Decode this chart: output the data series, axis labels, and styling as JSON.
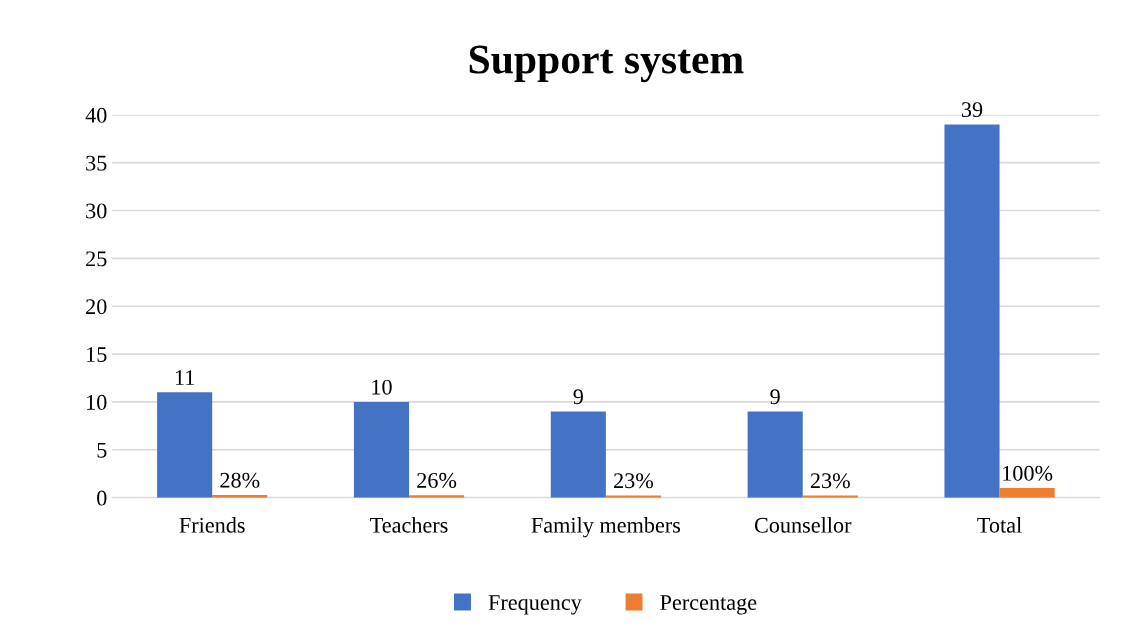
{
  "chart_data": {
    "type": "bar",
    "title": "Support system",
    "categories": [
      "Friends",
      "Teachers",
      "Family members",
      "Counsellor",
      "Total"
    ],
    "series": [
      {
        "name": "Frequency",
        "color": "#4472c4",
        "values": [
          11,
          10,
          9,
          9,
          39
        ],
        "value_labels": [
          "11",
          "10",
          "9",
          "9",
          "39"
        ]
      },
      {
        "name": "Percentage",
        "color": "#ed7d31",
        "values": [
          0.28,
          0.26,
          0.23,
          0.23,
          1
        ],
        "value_labels": [
          "28%",
          "26%",
          "23%",
          "23%",
          "100%"
        ]
      }
    ],
    "ylim": [
      0,
      40
    ],
    "yticks": [
      0,
      5,
      10,
      15,
      20,
      25,
      30,
      35,
      40
    ],
    "grid": "y",
    "legend": "bottom"
  }
}
